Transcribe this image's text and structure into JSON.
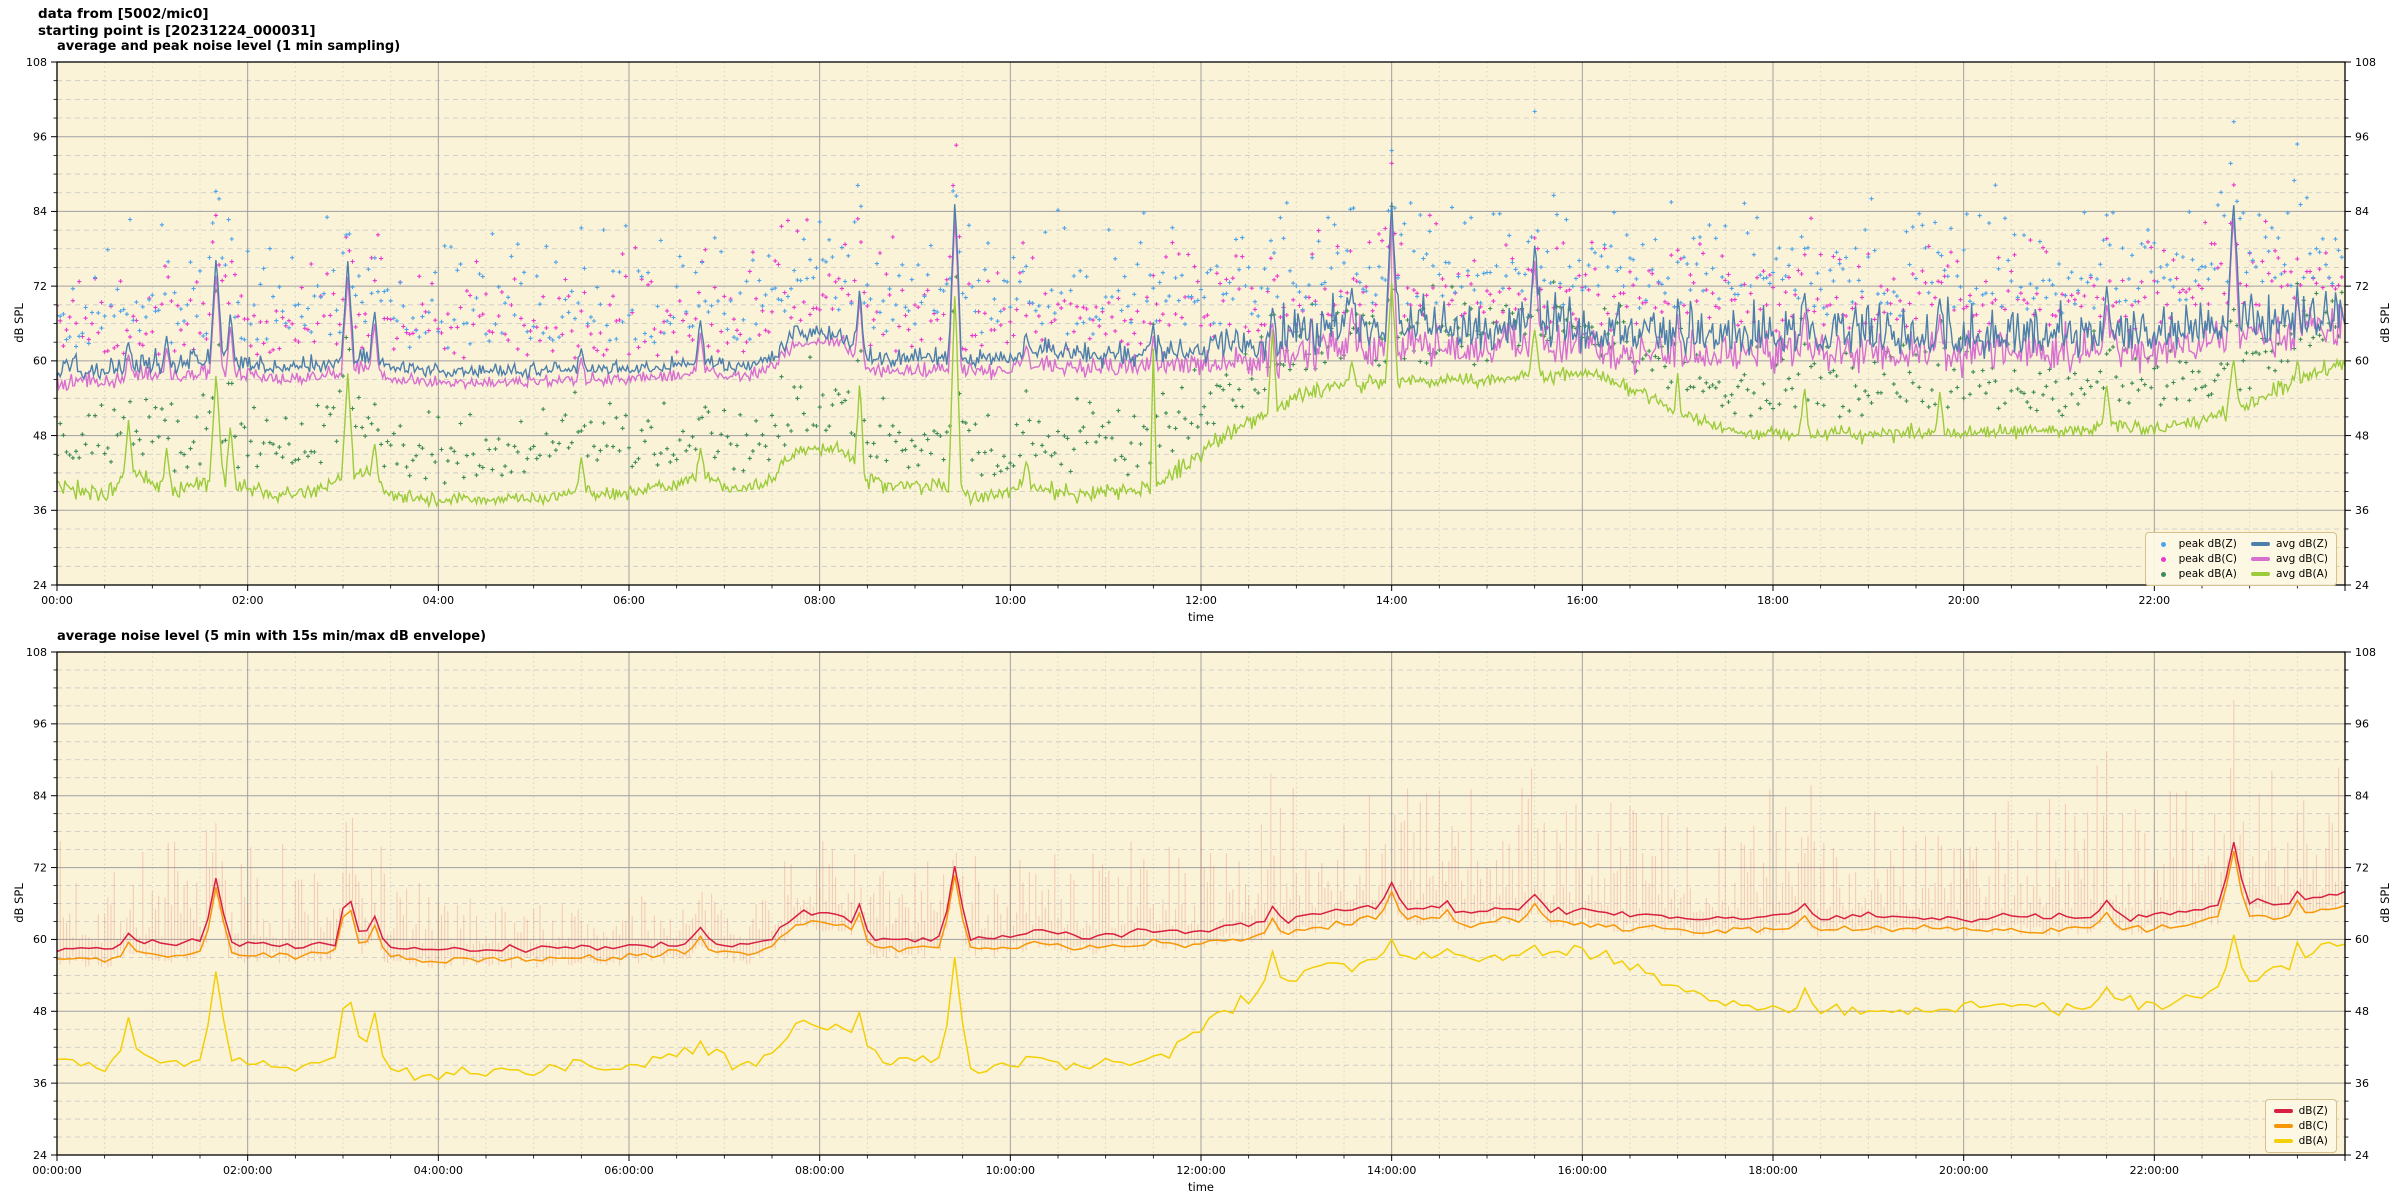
{
  "header": {
    "line1": "data from [5002/mic0]",
    "line2": "starting point is [20231224_000031]"
  },
  "style": {
    "figure_bg": "#ffffff",
    "plot_bg": "#fbf3d8",
    "grid_major": "#a0a0a0",
    "grid_minor_h": "#c6c6c6",
    "grid_minor_v": "#d4d4ca",
    "spine": "#000000",
    "legend_bg": "#fdf8e4",
    "legend_border": "#d8c08c"
  },
  "chart_data": [
    {
      "type": "line+scatter",
      "title": "average and peak noise level (1 min sampling)",
      "xlabel": "time",
      "ylabel": "dB SPL",
      "ylim": [
        24,
        108
      ],
      "xlim_hours": [
        0,
        24
      ],
      "yticks": [
        24,
        36,
        48,
        60,
        72,
        84,
        96,
        108
      ],
      "ytick_minor_step": 3,
      "xtick_step_hours": 2,
      "xtick_minor_step_hours": 0.5,
      "xtick_labels": [
        "00:00",
        "02:00",
        "04:00",
        "06:00",
        "08:00",
        "10:00",
        "12:00",
        "14:00",
        "16:00",
        "18:00",
        "20:00",
        "22:00"
      ],
      "grid": true,
      "legend_position": "lower right",
      "legend": [
        {
          "label": "peak dB(Z)",
          "marker": "dot",
          "color": "#4fa3e8"
        },
        {
          "label": "peak dB(C)",
          "marker": "dot",
          "color": "#e93acd"
        },
        {
          "label": "peak dB(A)",
          "marker": "dot",
          "color": "#3f8b56"
        },
        {
          "label": "avg dB(Z)",
          "marker": "line",
          "color": "#4e7fab"
        },
        {
          "label": "avg dB(C)",
          "marker": "line",
          "color": "#d76fd0"
        },
        {
          "label": "avg dB(A)",
          "marker": "line",
          "color": "#9ccb3b"
        }
      ],
      "t_step_hours": 0.25,
      "series": {
        "avg_dbz": {
          "label": "avg dB(Z)",
          "color": "#4e7fab",
          "values": [
            58.3,
            58.6,
            58.4,
            59.0,
            59.5,
            59.2,
            59.8,
            60.0,
            59.2,
            59.0,
            58.8,
            59.3,
            60.0,
            60.6,
            59.0,
            58.4,
            58.2,
            58.3,
            58.2,
            58.4,
            58.3,
            58.5,
            58.6,
            58.5,
            58.8,
            59.0,
            59.2,
            60.0,
            59.3,
            59.0,
            60.5,
            64.3,
            64.5,
            64.0,
            60.3,
            60.0,
            60.2,
            60.5,
            60.5,
            60.2,
            60.5,
            61.5,
            61.0,
            60.5,
            60.8,
            61.0,
            61.5,
            61.2,
            61.5,
            62.0,
            62.5,
            63.0,
            63.5,
            64.5,
            65.0,
            65.5,
            65.0,
            65.5,
            65.0,
            64.5,
            65.0,
            65.5,
            65.0,
            64.8,
            65.0,
            64.5,
            64.0,
            64.2,
            63.8,
            63.5,
            63.8,
            63.5,
            63.8,
            64.5,
            63.5,
            63.8,
            64.0,
            63.5,
            63.8,
            64.0,
            63.5,
            63.8,
            64.0,
            63.5,
            63.8,
            64.0,
            64.5,
            63.8,
            64.0,
            64.5,
            65.0,
            66.0,
            66.5,
            66.0,
            66.5,
            67.0,
            67.5
          ]
        },
        "avg_dbc": {
          "label": "avg dB(C)",
          "color": "#d76fd0",
          "gap_below_dbz_bp": [
            [
              0,
              1.9
            ],
            [
              7.5,
              1.6
            ],
            [
              8.3,
              1.3
            ],
            [
              8.5,
              1.9
            ],
            [
              12,
              2.2
            ],
            [
              13,
              3.0
            ],
            [
              22,
              2.4
            ],
            [
              23,
              2.0
            ],
            [
              24,
              2.0
            ]
          ]
        },
        "avg_dba": {
          "label": "avg dB(A)",
          "color": "#9ccb3b",
          "values": [
            40.0,
            39.0,
            38.5,
            42.0,
            40.0,
            39.0,
            40.5,
            41.0,
            39.5,
            38.5,
            38.8,
            39.5,
            41.0,
            42.0,
            38.5,
            37.8,
            37.5,
            38.0,
            37.8,
            38.0,
            37.8,
            38.2,
            39.5,
            38.5,
            38.8,
            39.5,
            40.0,
            41.5,
            40.0,
            39.5,
            41.0,
            45.5,
            46.0,
            45.5,
            41.0,
            40.0,
            39.8,
            40.0,
            38.5,
            38.0,
            39.5,
            40.0,
            39.0,
            38.8,
            39.2,
            39.0,
            40.0,
            42.0,
            45.0,
            48.0,
            50.0,
            52.0,
            54.0,
            55.5,
            56.0,
            56.5,
            56.5,
            57.0,
            56.5,
            56.8,
            57.0,
            57.5,
            57.0,
            57.5,
            58.0,
            57.0,
            55.5,
            54.0,
            52.0,
            50.5,
            49.0,
            48.0,
            48.5,
            48.0,
            48.2,
            48.5,
            48.0,
            48.3,
            48.5,
            48.2,
            48.5,
            48.8,
            48.5,
            49.0,
            48.5,
            49.0,
            50.0,
            49.5,
            49.0,
            49.5,
            50.5,
            52.0,
            53.0,
            55.0,
            57.0,
            58.5,
            59.5
          ]
        },
        "peak_dbz": {
          "label": "peak dB(Z)",
          "color": "#4fa3e8"
        },
        "peak_dbc": {
          "label": "peak dB(C)",
          "color": "#e93acd"
        },
        "peak_dba": {
          "label": "peak dB(A)",
          "color": "#3f8b56"
        }
      },
      "scatter": {
        "step_min": 2,
        "offsets": {
          "peak_dbz": [
            3.5,
            7,
            14
          ],
          "peak_dbc": [
            3,
            6.5,
            13
          ],
          "peak_dba": [
            2.5,
            5.5,
            9
          ]
        }
      },
      "noise": {
        "seed": 42,
        "amp_zc_bp": [
          [
            0,
            1.0
          ],
          [
            2,
            0.9
          ],
          [
            3.8,
            0.6
          ],
          [
            7,
            0.7
          ],
          [
            8.5,
            0.8
          ],
          [
            10,
            0.9
          ],
          [
            12,
            1.3
          ],
          [
            13,
            2.4
          ],
          [
            17,
            2.2
          ],
          [
            22,
            2.3
          ],
          [
            24,
            2.4
          ]
        ],
        "amp_a_bp": [
          [
            0,
            1.2
          ],
          [
            2,
            1.0
          ],
          [
            4,
            0.7
          ],
          [
            7,
            0.8
          ],
          [
            10,
            0.9
          ],
          [
            11.5,
            1.1
          ],
          [
            13,
            0.9
          ],
          [
            17,
            0.8
          ],
          [
            22,
            0.9
          ],
          [
            24,
            1.1
          ]
        ]
      },
      "events_h_w_z_c_a": [
        [
          0.75,
          3,
          63,
          61,
          50.5
        ],
        [
          1.15,
          3,
          64,
          62,
          46
        ],
        [
          1.67,
          4,
          77,
          74.5,
          58.5
        ],
        [
          1.82,
          3,
          68,
          66,
          50
        ],
        [
          3.05,
          4,
          76,
          73.5,
          58
        ],
        [
          3.33,
          3,
          68.5,
          66.5,
          47
        ],
        [
          5.5,
          3,
          62,
          60.5,
          44.5
        ],
        [
          6.75,
          3,
          66.5,
          64.5,
          46
        ],
        [
          7.6,
          2,
          63,
          61.5,
          44
        ],
        [
          8.42,
          3,
          72,
          70.5,
          57
        ],
        [
          9.42,
          4,
          86.5,
          84,
          72
        ],
        [
          10.17,
          3,
          64.5,
          62.5,
          44
        ],
        [
          11.5,
          2,
          66,
          64,
          62
        ],
        [
          12.75,
          3,
          68.5,
          66,
          65
        ],
        [
          13.58,
          3,
          72,
          69,
          60
        ],
        [
          14.0,
          4,
          85.5,
          83,
          72.5
        ],
        [
          15.5,
          4,
          78.5,
          76,
          65
        ],
        [
          17.0,
          2,
          70,
          67.5,
          58
        ],
        [
          18.33,
          3,
          71,
          68,
          56
        ],
        [
          19.75,
          3,
          70,
          67.5,
          55
        ],
        [
          21.5,
          3,
          72,
          69,
          56
        ],
        [
          22.83,
          4,
          86,
          84,
          60.5
        ],
        [
          23.5,
          2,
          72,
          70,
          60
        ]
      ]
    },
    {
      "type": "line+envelope",
      "title": "average noise level (5 min with 15s min/max dB envelope)",
      "xlabel": "time",
      "ylabel": "dB SPL",
      "ylim": [
        24,
        108
      ],
      "xlim_hours": [
        0,
        24
      ],
      "yticks": [
        24,
        36,
        48,
        60,
        72,
        84,
        96,
        108
      ],
      "ytick_minor_step": 3,
      "xtick_step_hours": 2,
      "xtick_minor_step_hours": 0.5,
      "xtick_labels": [
        "00:00:00",
        "02:00:00",
        "04:00:00",
        "06:00:00",
        "08:00:00",
        "10:00:00",
        "12:00:00",
        "14:00:00",
        "16:00:00",
        "18:00:00",
        "20:00:00",
        "22:00:00"
      ],
      "grid": true,
      "legend_position": "lower right",
      "legend": [
        {
          "label": "dB(Z)",
          "marker": "line",
          "color": "#d81f44"
        },
        {
          "label": "dB(C)",
          "marker": "line",
          "color": "#f79708"
        },
        {
          "label": "dB(A)",
          "marker": "line",
          "color": "#f3cf06"
        }
      ],
      "t_step_hours": 0.25,
      "series": {
        "dbz": {
          "label": "dB(Z)",
          "color": "#d81f44",
          "values": [
            58.3,
            58.6,
            58.4,
            59.0,
            59.5,
            59.2,
            59.8,
            60.0,
            59.2,
            59.0,
            58.8,
            59.3,
            60.0,
            60.6,
            59.0,
            58.4,
            58.2,
            58.3,
            58.2,
            58.4,
            58.3,
            58.5,
            58.6,
            58.5,
            58.8,
            59.0,
            59.2,
            60.0,
            59.3,
            59.0,
            60.5,
            64.3,
            64.5,
            64.0,
            60.3,
            60.0,
            60.2,
            60.5,
            60.5,
            60.2,
            60.5,
            61.5,
            61.0,
            60.5,
            60.8,
            61.0,
            61.5,
            61.2,
            61.5,
            62.0,
            62.5,
            63.0,
            63.5,
            64.5,
            65.0,
            65.5,
            65.0,
            65.5,
            65.0,
            64.5,
            65.0,
            65.5,
            65.0,
            64.8,
            65.0,
            64.5,
            64.0,
            64.2,
            63.8,
            63.5,
            63.8,
            63.5,
            63.8,
            64.5,
            63.5,
            63.8,
            64.0,
            63.5,
            63.8,
            64.0,
            63.5,
            63.8,
            64.0,
            63.5,
            63.8,
            64.0,
            64.5,
            63.8,
            64.0,
            64.5,
            65.0,
            66.0,
            66.5,
            66.0,
            66.5,
            67.0,
            67.5
          ]
        },
        "dbc": {
          "label": "dB(C)",
          "color": "#f79708",
          "gap_below_dbz_bp": [
            [
              0,
              1.8
            ],
            [
              7.5,
              1.5
            ],
            [
              12,
              2.1
            ],
            [
              24,
              2.1
            ]
          ]
        },
        "dba": {
          "label": "dB(A)",
          "color": "#f3cf06",
          "values": [
            40.0,
            39.0,
            38.5,
            42.0,
            40.0,
            39.0,
            40.5,
            41.0,
            39.5,
            38.5,
            38.8,
            39.5,
            41.0,
            42.0,
            38.5,
            37.8,
            37.5,
            38.0,
            37.8,
            38.0,
            37.8,
            38.2,
            39.5,
            38.5,
            38.8,
            39.5,
            40.0,
            41.5,
            40.0,
            39.5,
            41.0,
            45.5,
            46.0,
            45.5,
            41.0,
            40.0,
            39.8,
            40.0,
            38.5,
            38.0,
            39.5,
            40.0,
            39.0,
            38.8,
            39.2,
            39.0,
            40.0,
            42.0,
            45.0,
            48.0,
            50.0,
            52.0,
            54.0,
            55.5,
            56.0,
            56.5,
            56.5,
            57.0,
            56.5,
            56.8,
            57.0,
            57.5,
            57.0,
            57.5,
            58.0,
            57.0,
            55.5,
            54.0,
            52.0,
            50.5,
            49.0,
            48.0,
            48.5,
            48.0,
            48.2,
            48.5,
            48.0,
            48.3,
            48.5,
            48.2,
            48.5,
            48.8,
            48.5,
            49.0,
            48.5,
            49.0,
            50.0,
            49.5,
            49.0,
            49.5,
            50.5,
            52.0,
            53.0,
            55.0,
            57.0,
            58.5,
            59.5
          ]
        },
        "envelope": {
          "name": "15s min/max dB envelope",
          "color": "rgba(228,122,105,0.32)",
          "extra_max_db_bp": [
            [
              0,
              18
            ],
            [
              3.5,
              16
            ],
            [
              4,
              8
            ],
            [
              7,
              7
            ],
            [
              7.5,
              11
            ],
            [
              9.3,
              12
            ],
            [
              9.45,
              24
            ],
            [
              10,
              13
            ],
            [
              12,
              16
            ],
            [
              13,
              24
            ],
            [
              16,
              20
            ],
            [
              17,
              16
            ],
            [
              18,
              22
            ],
            [
              20,
              22
            ],
            [
              22,
              25
            ],
            [
              24,
              26
            ]
          ],
          "min_below_db": 2.2
        }
      },
      "noise": {
        "seed": 7,
        "amp_z": 0.45,
        "amp_a": 0.85
      },
      "events_h_w_z_c_a": [
        [
          0.75,
          6,
          61,
          59.5,
          47
        ],
        [
          1.67,
          8,
          70.5,
          69,
          55
        ],
        [
          3.05,
          8,
          68.5,
          67,
          52.5
        ],
        [
          3.33,
          6,
          64,
          62.5,
          48
        ],
        [
          6.75,
          6,
          62,
          60.5,
          43
        ],
        [
          8.42,
          6,
          66,
          64.5,
          48
        ],
        [
          9.42,
          8,
          72.5,
          71,
          57.5
        ],
        [
          12.75,
          6,
          65.5,
          63.5,
          58
        ],
        [
          14.0,
          8,
          69.5,
          68,
          60
        ],
        [
          14.58,
          6,
          66.5,
          65,
          58.5
        ],
        [
          15.5,
          8,
          67.5,
          66,
          59
        ],
        [
          18.33,
          6,
          66,
          64,
          52
        ],
        [
          21.5,
          6,
          66.5,
          64.5,
          52
        ],
        [
          22.83,
          8,
          76.5,
          75,
          61
        ],
        [
          23.5,
          5,
          68,
          66.5,
          59.5
        ]
      ]
    }
  ]
}
